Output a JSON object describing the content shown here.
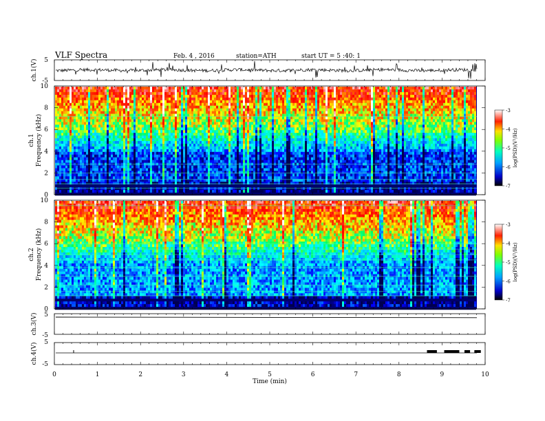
{
  "header": {
    "title": "VLF Spectra",
    "date": "Feb. 4 , 2016",
    "station": "station=ATH",
    "start": "start UT = 5 :40: 1"
  },
  "chart_data": [
    {
      "type": "line",
      "panel": "ch1-waveform",
      "ylabel": "ch.1(V)",
      "ylim": [
        -5,
        5
      ],
      "ytick_labels": [
        "5",
        "-5"
      ],
      "xlim": [
        0,
        10
      ],
      "note": "noisy waveform centred near 0 V with spikes"
    },
    {
      "type": "heatmap",
      "panel": "ch1-spectrogram",
      "ylabel_top": "ch.1",
      "ylabel": "Frequency (kHz)",
      "ylim": [
        0,
        10
      ],
      "ytick_labels": [
        "10",
        "8",
        "6",
        "4",
        "2",
        "0"
      ],
      "xlim": [
        0,
        10
      ],
      "colorbar": {
        "label": "log(PSD)(V²/Hz)",
        "range": [
          -7,
          -3
        ],
        "tick_labels": [
          "-3",
          "-4",
          "-5",
          "-6",
          "-7"
        ]
      }
    },
    {
      "type": "heatmap",
      "panel": "ch2-spectrogram",
      "ylabel_top": "ch.2",
      "ylabel": "Frequency (kHz)",
      "ylim": [
        0,
        10
      ],
      "ytick_labels": [
        "10",
        "8",
        "6",
        "4",
        "2",
        "0"
      ],
      "xlim": [
        0,
        10
      ],
      "colorbar": {
        "label": "log(PSD)(V²/Hz)",
        "range": [
          -7,
          -3
        ],
        "tick_labels": [
          "-3",
          "-4",
          "-5",
          "-6",
          "-7"
        ]
      }
    },
    {
      "type": "line",
      "panel": "ch3-waveform",
      "ylabel": "ch.3(V)",
      "ylim": [
        -5,
        5
      ],
      "ytick_labels": [
        "5",
        "-5"
      ],
      "xlim": [
        0,
        10
      ],
      "note": "flat trace near 0 V"
    },
    {
      "type": "line",
      "panel": "ch4-waveform",
      "ylabel": "ch.4(V)",
      "ylim": [
        -5,
        5
      ],
      "ytick_labels": [
        "5",
        "-5"
      ],
      "xlim": [
        0,
        10
      ],
      "blocks_min": [
        [
          8.65,
          8.88
        ],
        [
          9.05,
          9.4
        ],
        [
          9.52,
          9.65
        ],
        [
          9.75,
          9.9
        ]
      ]
    }
  ],
  "xaxis": {
    "label": "Time (min)",
    "ticks": [
      0,
      1,
      2,
      3,
      4,
      5,
      6,
      7,
      8,
      9,
      10
    ],
    "tick_labels": [
      "0",
      "1",
      "2",
      "3",
      "4",
      "5",
      "6",
      "7",
      "8",
      "9",
      "10"
    ]
  },
  "colors": {
    "colormap": [
      "#000050",
      "#0000ff",
      "#0090ff",
      "#00ffff",
      "#00ff60",
      "#ffff00",
      "#ff6000",
      "#ff0000",
      "#ffffff"
    ]
  }
}
